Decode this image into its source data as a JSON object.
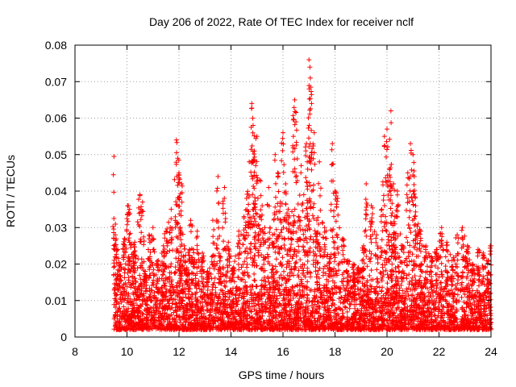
{
  "chart_data": {
    "type": "scatter",
    "title": "Day 206 of 2022, Rate Of TEC Index for receiver nclf",
    "xlabel": "GPS time / hours",
    "ylabel": "ROTI / TECUs",
    "xlim": [
      8,
      24
    ],
    "ylim": [
      0,
      0.08
    ],
    "x_ticks": [
      "8",
      "10",
      "12",
      "14",
      "16",
      "18",
      "20",
      "22",
      "24"
    ],
    "y_ticks": [
      "0",
      "0.01",
      "0.02",
      "0.03",
      "0.04",
      "0.05",
      "0.06",
      "0.07",
      "0.08"
    ],
    "grid": true,
    "marker": "+",
    "marker_color": "#ff0000",
    "series": [
      {
        "x": [
          9.5,
          9.55,
          9.6,
          9.75,
          9.9,
          10.05,
          10.1,
          10.2,
          10.3,
          10.5,
          10.6,
          10.7,
          10.85,
          11.0,
          11.2,
          11.4,
          11.5,
          11.7,
          11.9,
          11.95,
          12.0,
          12.05,
          12.1,
          12.2,
          12.3,
          12.45,
          12.55,
          12.7,
          12.9,
          13.1,
          13.3,
          13.5,
          13.6,
          13.75,
          13.9,
          14.1,
          14.3,
          14.5,
          14.6,
          14.7,
          14.8,
          14.85,
          14.9,
          14.95,
          15.0,
          15.1,
          15.2,
          15.3,
          15.45,
          15.6,
          15.7,
          15.8,
          15.9,
          16.0,
          16.1,
          16.2,
          16.3,
          16.4,
          16.45,
          16.5,
          16.6,
          16.7,
          16.8,
          16.9,
          16.95,
          17.0,
          17.05,
          17.1,
          17.2,
          17.3,
          17.4,
          17.6,
          17.8,
          17.9,
          18.0,
          18.1,
          18.3,
          18.5,
          18.7,
          18.9,
          19.1,
          19.2,
          19.4,
          19.6,
          19.8,
          19.9,
          20.0,
          20.1,
          20.15,
          20.2,
          20.25,
          20.3,
          20.4,
          20.6,
          20.8,
          20.9,
          21.0,
          21.05,
          21.1,
          21.2,
          21.3,
          21.5,
          21.7,
          21.9,
          22.1,
          22.3,
          22.5,
          22.7,
          22.9,
          23.1,
          23.3,
          23.5,
          23.7,
          23.9,
          24.0
        ],
        "y": [
          0.0495,
          0.028,
          0.024,
          0.02,
          0.027,
          0.036,
          0.035,
          0.022,
          0.026,
          0.039,
          0.037,
          0.018,
          0.028,
          0.03,
          0.021,
          0.025,
          0.029,
          0.035,
          0.054,
          0.049,
          0.045,
          0.03,
          0.042,
          0.025,
          0.019,
          0.032,
          0.024,
          0.029,
          0.023,
          0.018,
          0.032,
          0.044,
          0.022,
          0.041,
          0.026,
          0.019,
          0.029,
          0.033,
          0.038,
          0.048,
          0.064,
          0.058,
          0.051,
          0.047,
          0.055,
          0.043,
          0.036,
          0.03,
          0.041,
          0.028,
          0.05,
          0.045,
          0.037,
          0.056,
          0.042,
          0.035,
          0.031,
          0.055,
          0.065,
          0.059,
          0.033,
          0.047,
          0.039,
          0.053,
          0.046,
          0.076,
          0.071,
          0.064,
          0.056,
          0.032,
          0.048,
          0.03,
          0.022,
          0.053,
          0.04,
          0.038,
          0.027,
          0.021,
          0.02,
          0.019,
          0.025,
          0.042,
          0.036,
          0.028,
          0.035,
          0.055,
          0.057,
          0.046,
          0.062,
          0.034,
          0.042,
          0.031,
          0.04,
          0.025,
          0.045,
          0.053,
          0.05,
          0.044,
          0.036,
          0.031,
          0.029,
          0.025,
          0.022,
          0.024,
          0.03,
          0.026,
          0.021,
          0.028,
          0.03,
          0.025,
          0.02,
          0.024,
          0.023,
          0.021,
          0.025
        ],
        "baseline_band": [
          0.002,
          0.014
        ]
      }
    ]
  }
}
